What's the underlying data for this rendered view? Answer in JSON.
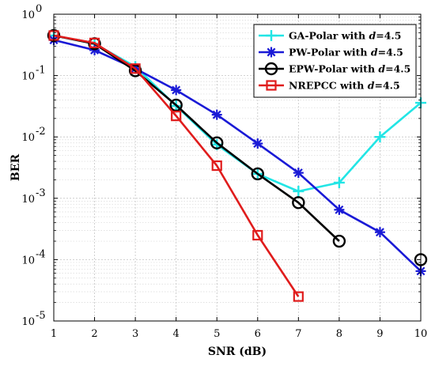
{
  "chart_data": {
    "type": "line",
    "xlabel": "SNR (dB)",
    "ylabel": "BER",
    "x_scale": "linear",
    "y_scale": "log",
    "xlim": [
      1,
      10
    ],
    "ylim": [
      1e-05,
      1
    ],
    "x_ticks": [
      "1",
      "2",
      "3",
      "4",
      "5",
      "6",
      "7",
      "8",
      "9",
      "10"
    ],
    "y_ticks": [
      {
        "value": 1e-05,
        "base": "10",
        "exp": "-5"
      },
      {
        "value": 0.0001,
        "base": "10",
        "exp": "-4"
      },
      {
        "value": 0.001,
        "base": "10",
        "exp": "-3"
      },
      {
        "value": 0.01,
        "base": "10",
        "exp": "-2"
      },
      {
        "value": 0.1,
        "base": "10",
        "exp": "-1"
      },
      {
        "value": 1,
        "base": "10",
        "exp": "0"
      }
    ],
    "grid": true,
    "minor_grid": true,
    "legend_position": "top-right",
    "series": [
      {
        "name": "GA-Polar with d=4.5",
        "legend_prefix": "GA-Polar with ",
        "legend_var": "d",
        "legend_suffix": "=4.5",
        "color": "#22e5e5",
        "marker": "plus",
        "x": [
          1,
          2,
          3,
          4,
          5,
          6,
          7,
          8,
          9,
          10
        ],
        "y": [
          0.45,
          0.33,
          0.14,
          0.032,
          0.0075,
          0.0025,
          0.0013,
          0.0018,
          0.01,
          0.036
        ]
      },
      {
        "name": "PW-Polar with d=4.5",
        "legend_prefix": "PW-Polar with ",
        "legend_var": "d",
        "legend_suffix": "=4.5",
        "color": "#1a1ad6",
        "marker": "asterisk",
        "x": [
          1,
          2,
          3,
          4,
          5,
          6,
          7,
          8,
          9,
          10
        ],
        "y": [
          0.38,
          0.26,
          0.13,
          0.058,
          0.023,
          0.0078,
          0.0026,
          0.00065,
          0.00028,
          6.5e-05
        ]
      },
      {
        "name": "EPW-Polar with d=4.5",
        "legend_prefix": "EPW-Polar with ",
        "legend_var": "d",
        "legend_suffix": "=4.5",
        "color": "#000000",
        "marker": "circle",
        "x": [
          1,
          2,
          3,
          4,
          5,
          6,
          7,
          8,
          10
        ],
        "y": [
          0.45,
          0.33,
          0.12,
          0.033,
          0.008,
          0.0025,
          0.00085,
          0.0002,
          0.0001
        ],
        "connect_until_index": 7
      },
      {
        "name": "NREPCC with d=4.5",
        "legend_prefix": "NREPCC with ",
        "legend_var": "d",
        "legend_suffix": "=4.5",
        "color": "#e01c1c",
        "marker": "square",
        "x": [
          1,
          2,
          3,
          4,
          5,
          6,
          7
        ],
        "y": [
          0.45,
          0.34,
          0.13,
          0.022,
          0.0034,
          0.00025,
          2.5e-05
        ]
      }
    ]
  }
}
